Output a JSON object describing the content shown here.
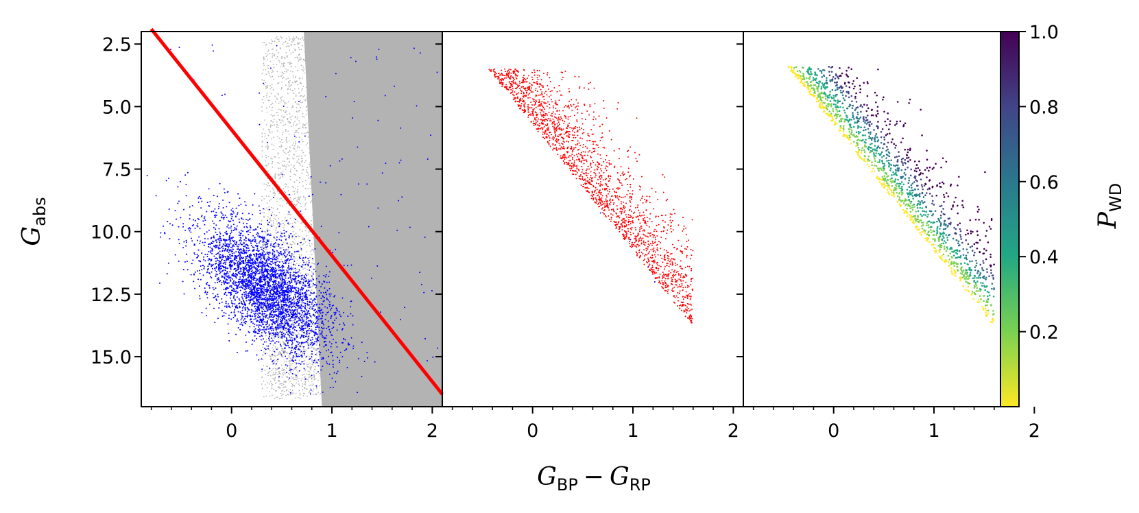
{
  "chart_data": [
    {
      "type": "scatter",
      "panel": "left",
      "xlabel_main": "G",
      "xlabel_sub1": "BP",
      "xlabel_op": "−",
      "xlabel_main2": "G",
      "xlabel_sub2": "RP",
      "ylabel_main": "G",
      "ylabel_sub": "abs",
      "xlim": [
        -0.9,
        2.1
      ],
      "ylim": [
        17.0,
        2.0
      ],
      "xticks": [
        0,
        1,
        2
      ],
      "xtick_labels": [
        "0",
        "1",
        "2"
      ],
      "yticks": [
        2.5,
        5.0,
        7.5,
        10.0,
        12.5,
        15.0
      ],
      "ytick_labels": [
        "2.5",
        "5.0",
        "7.5",
        "10.0",
        "12.5",
        "15.0"
      ],
      "series": [
        {
          "color": "#b3b3b3",
          "region": "dense main-sequence / background stars, filling x > 0.7 across all magnitudes"
        },
        {
          "color": "#0000ff",
          "region": "white dwarf locus, x ≈ -0.5 to 1.0, G ≈ 7.5 to 15.5, densest near (0.4, 13)"
        }
      ],
      "cut_line": {
        "color": "#ff0000",
        "x": [
          -0.8,
          2.1
        ],
        "y": [
          1.9,
          16.5
        ]
      }
    },
    {
      "type": "scatter",
      "panel": "middle",
      "xlim": [
        -0.9,
        2.1
      ],
      "ylim": [
        17.0,
        2.0
      ],
      "xticks": [
        0,
        1,
        2
      ],
      "xtick_labels": [
        "0",
        "1",
        "2"
      ],
      "series": [
        {
          "color": "#0000ff",
          "region": "white dwarf locus"
        },
        {
          "color": "#ff0000",
          "region": "contaminants near the cut line, x ≈ -0.6 to 1.6, G ≈ 3.5 to 16"
        }
      ]
    },
    {
      "type": "scatter",
      "panel": "right",
      "xlim": [
        -0.9,
        2.1
      ],
      "ylim": [
        17.0,
        2.0
      ],
      "xticks": [
        0,
        1,
        2
      ],
      "xtick_labels": [
        "0",
        "1",
        "2"
      ],
      "color_by": "P_WD",
      "colorbar": {
        "label_main": "P",
        "label_sub": "WD",
        "range": [
          0.0,
          1.0
        ],
        "ticks": [
          0.2,
          0.4,
          0.6,
          0.8,
          1.0
        ],
        "tick_labels": [
          "0.2",
          "0.4",
          "0.6",
          "0.8",
          "1.0"
        ],
        "colormap": "viridis (reversed)",
        "colors": [
          "#fde725",
          "#7ad151",
          "#22a884",
          "#2a788e",
          "#414487",
          "#440154"
        ]
      }
    }
  ]
}
